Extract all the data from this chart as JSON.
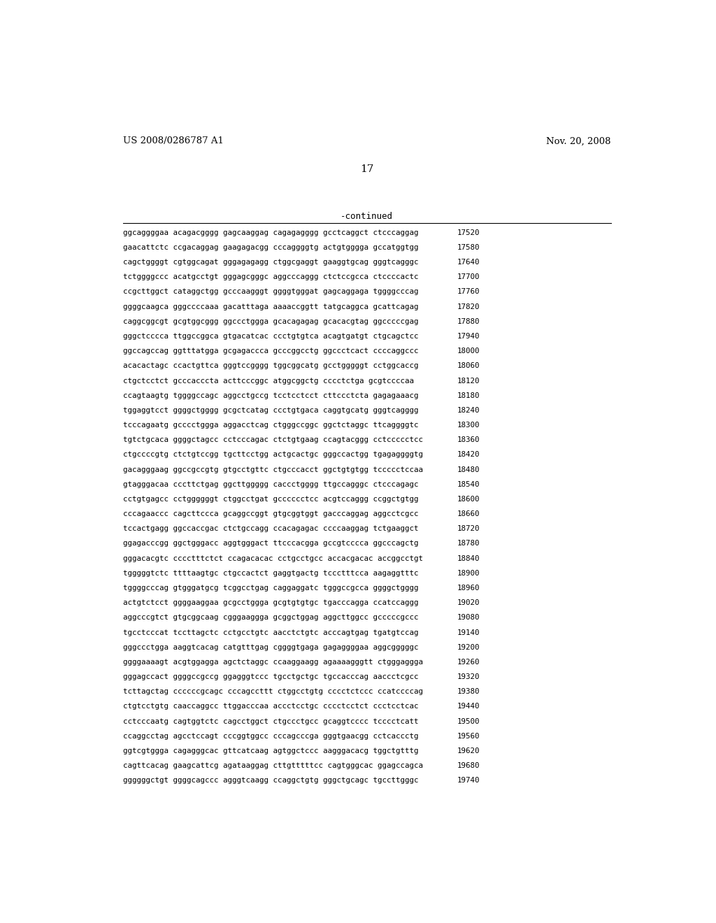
{
  "header_left": "US 2008/0286787 A1",
  "header_right": "Nov. 20, 2008",
  "page_number": "17",
  "continued_label": "-continued",
  "background_color": "#ffffff",
  "text_color": "#000000",
  "rows": [
    {
      "seq": "ggcaggggaa acagacgggg gagcaaggag cagagagggg gcctcaggct ctcccaggag",
      "num": "17520"
    },
    {
      "seq": "gaacattctc ccgacaggag gaagagacgg cccaggggtg actgtgggga gccatggtgg",
      "num": "17580"
    },
    {
      "seq": "cagctggggt cgtggcagat gggagagagg ctggcgaggt gaaggtgcag gggtcagggc",
      "num": "17640"
    },
    {
      "seq": "tctggggccc acatgcctgt gggagcgggc aggcccaggg ctctccgcca ctccccactc",
      "num": "17700"
    },
    {
      "seq": "ccgcttggct cataggctgg gcccaagggt ggggtgggat gagcaggaga tggggcccag",
      "num": "17760"
    },
    {
      "seq": "ggggcaagca gggccccaaa gacatttaga aaaaccggtt tatgcaggca gcattcagag",
      "num": "17820"
    },
    {
      "seq": "caggcggcgt gcgtggcggg ggccctggga gcacagagag gcacacgtag ggcccccgag",
      "num": "17880"
    },
    {
      "seq": "gggctcccca ttggccggca gtgacatcac ccctgtgtca acagtgatgt ctgcagctcc",
      "num": "17940"
    },
    {
      "seq": "ggccagccag ggtttatgga gcgagaccca gcccggcctg ggccctcact ccccaggccc",
      "num": "18000"
    },
    {
      "seq": "acacactagc ccactgttca gggtccgggg tggcggcatg gcctgggggt cctggcaccg",
      "num": "18060"
    },
    {
      "seq": "ctgctcctct gcccacccta acttcccggc atggcggctg cccctctga gcgtccccaa",
      "num": "18120"
    },
    {
      "seq": "ccagtaagtg tggggccagc aggcctgccg tcctcctcct cttccctcta gagagaaacg",
      "num": "18180"
    },
    {
      "seq": "tggaggtcct ggggctgggg gcgctcatag ccctgtgaca caggtgcatg gggtcagggg",
      "num": "18240"
    },
    {
      "seq": "tcccagaatg gcccctggga aggacctcag ctgggccggc ggctctaggc ttcaggggtc",
      "num": "18300"
    },
    {
      "seq": "tgtctgcaca ggggctagcc cctcccagac ctctgtgaag ccagtacggg cctccccctcc",
      "num": "18360"
    },
    {
      "seq": "ctgccccgtg ctctgtccgg tgcttcctgg actgcactgc gggccactgg tgagaggggtg",
      "num": "18420"
    },
    {
      "seq": "gacagggaag ggccgccgtg gtgcctgttc ctgcccacct ggctgtgtgg tccccctccaa",
      "num": "18480"
    },
    {
      "seq": "gtagggacaa cccttctgag ggcttggggg caccctgggg ttgccagggc ctcccagagc",
      "num": "18540"
    },
    {
      "seq": "cctgtgagcc cctggggggt ctggcctgat gcccccctcc acgtccaggg ccggctgtgg",
      "num": "18600"
    },
    {
      "seq": "cccagaaccc cagcttccca gcaggccggt gtgcggtggt gacccaggag aggcctcgcc",
      "num": "18660"
    },
    {
      "seq": "tccactgagg ggccaccgac ctctgccagg ccacagagac ccccaaggag tctgaaggct",
      "num": "18720"
    },
    {
      "seq": "ggagacccgg ggctgggacc aggtgggact ttcccacgga gccgtcccca ggcccagctg",
      "num": "18780"
    },
    {
      "seq": "gggacacgtc cccctttctct ccagacacac cctgcctgcc accacgacac accggcctgt",
      "num": "18840"
    },
    {
      "seq": "tgggggtctc ttttaagtgc ctgccactct gaggtgactg tccctttcca aagaggtttc",
      "num": "18900"
    },
    {
      "seq": "tggggcccag gtgggatgcg tcggcctgag caggaggatc tgggccgcca ggggctgggg",
      "num": "18960"
    },
    {
      "seq": "actgtctcct ggggaaggaa gcgcctggga gcgtgtgtgc tgacccagga ccatccaggg",
      "num": "19020"
    },
    {
      "seq": "aggcccgtct gtgcggcaag cgggaaggga gcggctggag aggcttggcc gcccccgccc",
      "num": "19080"
    },
    {
      "seq": "tgcctcccat tccttagctc cctgcctgtc aacctctgtc acccagtgag tgatgtccag",
      "num": "19140"
    },
    {
      "seq": "gggccctgga aaggtcacag catgtttgag cggggtgaga gagaggggaa aggcgggggc",
      "num": "19200"
    },
    {
      "seq": "ggggaaaagt acgtggagga agctctaggc ccaaggaagg agaaaagggtt ctgggaggga",
      "num": "19260"
    },
    {
      "seq": "gggagccact ggggccgccg ggagggtccc tgcctgctgc tgccacccag aaccctcgcc",
      "num": "19320"
    },
    {
      "seq": "tcttagctag ccccccgcagc cccagccttt ctggcctgtg cccctctccc ccatccccag",
      "num": "19380"
    },
    {
      "seq": "ctgtcctgtg caaccaggcc ttggacccaa accctcctgc cccctcctct ccctcctcac",
      "num": "19440"
    },
    {
      "seq": "cctcccaatg cagtggtctc cagcctggct ctgccctgcc gcaggtcccc tcccctcatt",
      "num": "19500"
    },
    {
      "seq": "ccaggcctag agcctccagt cccggtggcc cccagcccga gggtgaacgg cctcaccctg",
      "num": "19560"
    },
    {
      "seq": "ggtcgtggga cagagggcac gttcatcaag agtggctccc aagggacacg tggctgtttg",
      "num": "19620"
    },
    {
      "seq": "cagttcacag gaagcattcg agataaggag cttgtttttcc cagtgggcac ggagccagca",
      "num": "19680"
    },
    {
      "seq": "ggggggctgt ggggcagccc agggtcaagg ccaggctgtg gggctgcagc tgccttgggc",
      "num": "19740"
    }
  ]
}
